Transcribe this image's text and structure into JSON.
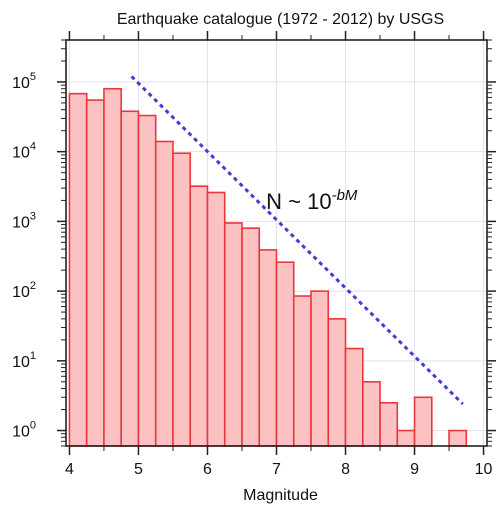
{
  "chart_data": {
    "type": "bar",
    "title": "Earthquake catalogue (1972 - 2012) by USGS",
    "xlabel": "Magnitude",
    "ylabel": "",
    "x_scale": "linear",
    "y_scale": "log",
    "xlim": [
      3.95,
      10.05
    ],
    "ylim": [
      0.6,
      400000
    ],
    "x_ticks": [
      "4",
      "5",
      "6",
      "7",
      "8",
      "9",
      "10"
    ],
    "y_tick_base": "10",
    "y_tick_exponents": [
      "0",
      "1",
      "2",
      "3",
      "4",
      "5"
    ],
    "grid": true,
    "bin_width": 0.25,
    "bins": [
      {
        "start": 4.0,
        "count": 68000
      },
      {
        "start": 4.25,
        "count": 55000
      },
      {
        "start": 4.5,
        "count": 80000
      },
      {
        "start": 4.75,
        "count": 38000
      },
      {
        "start": 5.0,
        "count": 33000
      },
      {
        "start": 5.25,
        "count": 14000
      },
      {
        "start": 5.5,
        "count": 9500
      },
      {
        "start": 5.75,
        "count": 3200
      },
      {
        "start": 6.0,
        "count": 2600
      },
      {
        "start": 6.25,
        "count": 950
      },
      {
        "start": 6.5,
        "count": 800
      },
      {
        "start": 6.75,
        "count": 390
      },
      {
        "start": 7.0,
        "count": 260
      },
      {
        "start": 7.25,
        "count": 85
      },
      {
        "start": 7.5,
        "count": 100
      },
      {
        "start": 7.75,
        "count": 40
      },
      {
        "start": 8.0,
        "count": 15
      },
      {
        "start": 8.25,
        "count": 5
      },
      {
        "start": 8.5,
        "count": 2.5
      },
      {
        "start": 8.75,
        "count": 1
      },
      {
        "start": 9.0,
        "count": 3
      },
      {
        "start": 9.25,
        "count": null
      },
      {
        "start": 9.5,
        "count": 1
      }
    ],
    "trend_line": {
      "from": {
        "x": 4.9,
        "y": 120000
      },
      "to": {
        "x": 9.7,
        "y": 2.4
      }
    },
    "annotation": {
      "prefix": "N ~ 10",
      "exponent": "-bM",
      "x": 6.85,
      "y": 1500
    },
    "colors": {
      "bar_fill": "#fcc1c1",
      "bar_edge": "#e8383d",
      "trend": "#3f3fd6",
      "grid": "#dfe3f2",
      "axis": "#222222"
    }
  }
}
